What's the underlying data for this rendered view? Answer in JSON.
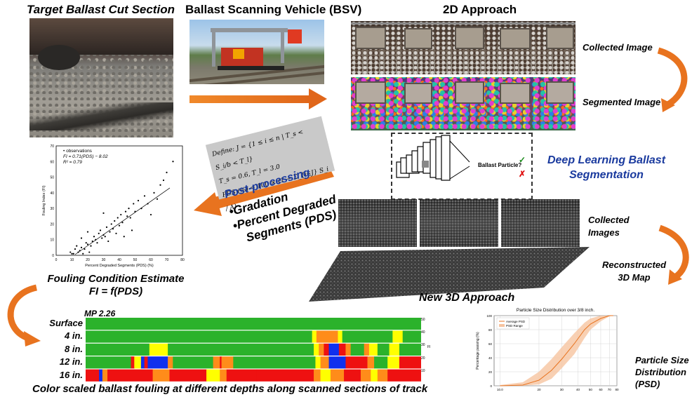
{
  "titles": {
    "target": "Target Ballast Cut Section",
    "bsv": "Ballast Scanning Vehicle (BSV)",
    "approach2d": "2D Approach",
    "approach3d": "New 3D Approach"
  },
  "labels2d": {
    "collected": "Collected Image",
    "segmented": "Segmented Image"
  },
  "labels3d": {
    "collected_line1": "Collected",
    "collected_line2": "Images",
    "reconstructed_line1": "Reconstructed",
    "reconstructed_line2": "3D Map"
  },
  "dl": {
    "line1": "Deep Learning Ballast",
    "line2": "Segmentation",
    "diagram_label": "Ballast Particle?",
    "check": "✓",
    "cross": "✗"
  },
  "formula": {
    "line1": "Define: J = {1 ≤ i ≤ n | T_s < S_i/b < T_l}",
    "line2": "T_s = 0.6, T_l = 3.0",
    "line3": "PDS (%) = 100 × (1 − Σ_{i∈J} S_i / A)"
  },
  "postprocessing": {
    "title": "Post-processing",
    "item1": "•Gradation",
    "item2_line1": "•Percent Degraded",
    "item2_line2": "Segments (PDS)"
  },
  "fouling": {
    "line1": "Fouling Condition Estimate",
    "line2": "FI = f(PDS)"
  },
  "heatmap": {
    "mp": "MP 2.26",
    "rows": [
      "Surface",
      "4 in.",
      "8 in.",
      "12 in.",
      "16 in."
    ],
    "caption": "Color scaled ballast fouling at different depths along scanned sections of track",
    "colorbar_ticks": [
      "50",
      "40",
      "30",
      "20",
      "10"
    ],
    "colorbar_label": "FI"
  },
  "psd": {
    "side_line1": "Particle Size",
    "side_line2": "Distribution",
    "side_line3": "(PSD)"
  },
  "chart_data": [
    {
      "type": "scatter",
      "legend": [
        "observations",
        "FI = 0.71(PDS) − 8.02",
        "R² = 0.79"
      ],
      "xlabel": "Percent Degraded Segments (PDS) (%)",
      "ylabel": "Fouling Index (FI)",
      "xlim": [
        0,
        80
      ],
      "ylim": [
        0,
        70
      ],
      "xticks": [
        "0",
        "10",
        "20",
        "30",
        "40",
        "50",
        "60",
        "70",
        "80"
      ],
      "yticks": [
        "0",
        "10",
        "20",
        "30",
        "40",
        "50",
        "60",
        "70"
      ],
      "fit": {
        "slope": 0.71,
        "intercept": -8.02,
        "x_range": [
          12,
          72
        ]
      },
      "points": [
        [
          9,
          2
        ],
        [
          10,
          1
        ],
        [
          11,
          1
        ],
        [
          12,
          4
        ],
        [
          13,
          6
        ],
        [
          14,
          2
        ],
        [
          15,
          3
        ],
        [
          16,
          5
        ],
        [
          17,
          1
        ],
        [
          18,
          4
        ],
        [
          19,
          8
        ],
        [
          20,
          7
        ],
        [
          21,
          2
        ],
        [
          22,
          6
        ],
        [
          23,
          9
        ],
        [
          24,
          12
        ],
        [
          25,
          10
        ],
        [
          26,
          8
        ],
        [
          27,
          14
        ],
        [
          28,
          16
        ],
        [
          29,
          11
        ],
        [
          30,
          13
        ],
        [
          31,
          12
        ],
        [
          32,
          18
        ],
        [
          33,
          9
        ],
        [
          34,
          15
        ],
        [
          35,
          20
        ],
        [
          36,
          17
        ],
        [
          37,
          22
        ],
        [
          38,
          14
        ],
        [
          39,
          24
        ],
        [
          40,
          19
        ],
        [
          41,
          26
        ],
        [
          42,
          21
        ],
        [
          43,
          12
        ],
        [
          44,
          28
        ],
        [
          45,
          25
        ],
        [
          46,
          30
        ],
        [
          47,
          24
        ],
        [
          48,
          16
        ],
        [
          49,
          33
        ],
        [
          50,
          28
        ],
        [
          52,
          35
        ],
        [
          54,
          30
        ],
        [
          56,
          38
        ],
        [
          58,
          33
        ],
        [
          60,
          26
        ],
        [
          62,
          40
        ],
        [
          64,
          36
        ],
        [
          66,
          45
        ],
        [
          68,
          48
        ],
        [
          70,
          53
        ],
        [
          74,
          60
        ],
        [
          30,
          27
        ],
        [
          20,
          15
        ],
        [
          16,
          11
        ]
      ]
    },
    {
      "type": "line",
      "title": "Particle Size Distribution over 3/8 inch.",
      "xlabel": "",
      "ylabel": "Percentage passing (%)",
      "xticks": [
        "10.0",
        "20",
        "30",
        "40",
        "50",
        "60",
        "70",
        "80"
      ],
      "yticks": [
        "0",
        "20",
        "40",
        "60",
        "80",
        "100"
      ],
      "legend": [
        "Average PSD",
        "PSD Range"
      ],
      "xlim": [
        9,
        80
      ],
      "ylim": [
        0,
        100
      ],
      "series": [
        {
          "name": "Average PSD",
          "x": [
            10,
            15,
            20,
            25,
            30,
            37.5,
            45,
            50,
            60,
            70,
            75
          ],
          "y": [
            0,
            1,
            8,
            22,
            38,
            60,
            80,
            88,
            96,
            100,
            100
          ]
        }
      ],
      "range_upper": [
        1,
        5,
        20,
        38,
        55,
        75,
        90,
        96,
        100,
        100,
        100
      ],
      "range_lower": [
        0,
        0,
        2,
        10,
        25,
        45,
        68,
        80,
        92,
        99,
        100
      ]
    },
    {
      "type": "heatmap",
      "rows": [
        "Surface",
        "4 in.",
        "8 in.",
        "12 in.",
        "16 in."
      ],
      "colors": {
        "green": "#2bb22b",
        "yellow": "#ffff00",
        "orange": "#ff8c1a",
        "red": "#ee1111",
        "blue": "#1030ee"
      }
    }
  ]
}
